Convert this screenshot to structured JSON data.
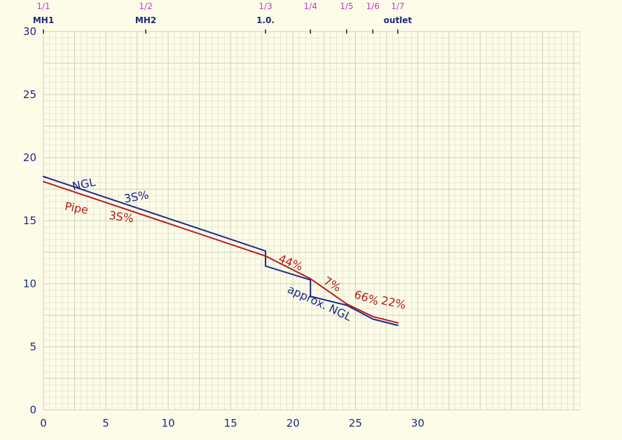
{
  "chart_data": {
    "type": "line",
    "xlim": [
      0,
      43
    ],
    "ylim": [
      0,
      30
    ],
    "grid": true,
    "grid_minor_step": 0.5,
    "grid_major_step": 2.5,
    "x_ticks": [
      {
        "value": 0,
        "label": "0"
      },
      {
        "value": 5,
        "label": "5"
      },
      {
        "value": 10,
        "label": "10"
      },
      {
        "value": 15,
        "label": "15"
      },
      {
        "value": 20,
        "label": "20"
      },
      {
        "value": 25,
        "label": "25"
      },
      {
        "value": 30,
        "label": "30"
      }
    ],
    "y_ticks": [
      {
        "value": 0,
        "label": "0"
      },
      {
        "value": 5,
        "label": "5"
      },
      {
        "value": 10,
        "label": "10"
      },
      {
        "value": 15,
        "label": "15"
      },
      {
        "value": 20,
        "label": "20"
      },
      {
        "value": 25,
        "label": "25"
      },
      {
        "value": 30,
        "label": "30"
      }
    ],
    "stations": [
      {
        "x": 0,
        "number": "1/1",
        "label": "MH1"
      },
      {
        "x": 8.2,
        "number": "1/2",
        "label": "MH2"
      },
      {
        "x": 17.8,
        "number": "1/3",
        "label": "1.0."
      },
      {
        "x": 21.4,
        "number": "1/4",
        "label": ""
      },
      {
        "x": 24.3,
        "number": "1/5",
        "label": ""
      },
      {
        "x": 26.4,
        "number": "1/6",
        "label": ""
      },
      {
        "x": 28.4,
        "number": "1/7",
        "label": "outlet"
      }
    ],
    "series": [
      {
        "color": "#1c2a8c",
        "x": [
          0,
          17.8,
          17.8,
          21.4,
          21.4,
          24.3,
          26.4,
          28.4
        ],
        "y": [
          18.5,
          12.6,
          11.4,
          10.3,
          9.0,
          8.3,
          7.2,
          6.7
        ]
      },
      {
        "color": "#b51c1c",
        "x": [
          0,
          17.8,
          21.4,
          24.3,
          26.4,
          28.4
        ],
        "y": [
          18.1,
          12.2,
          10.4,
          8.4,
          7.4,
          6.9
        ]
      }
    ],
    "annotations": [
      {
        "text": "NGL",
        "x": 3.3,
        "y": 17.6,
        "color": "#1c2a8c",
        "rotate": -12
      },
      {
        "text": "3S%",
        "x": 7.5,
        "y": 16.6,
        "color": "#1c2a8c",
        "rotate": -10
      },
      {
        "text": "Pipe",
        "x": 2.6,
        "y": 15.7,
        "color": "#b51c1c",
        "rotate": 10
      },
      {
        "text": "3S%",
        "x": 6.2,
        "y": 15.0,
        "color": "#b51c1c",
        "rotate": 8
      },
      {
        "text": "44%",
        "x": 19.7,
        "y": 11.4,
        "color": "#b51c1c",
        "rotate": 22
      },
      {
        "text": "7%",
        "x": 23.0,
        "y": 9.7,
        "color": "#b51c1c",
        "rotate": 30
      },
      {
        "text": "66%",
        "x": 25.8,
        "y": 8.6,
        "color": "#b51c1c",
        "rotate": 18
      },
      {
        "text": "22%",
        "x": 28.0,
        "y": 8.2,
        "color": "#b51c1c",
        "rotate": 12
      },
      {
        "text": "approx. NGL",
        "x": 22.0,
        "y": 8.2,
        "color": "#1c2a8c",
        "rotate": 25
      }
    ]
  }
}
